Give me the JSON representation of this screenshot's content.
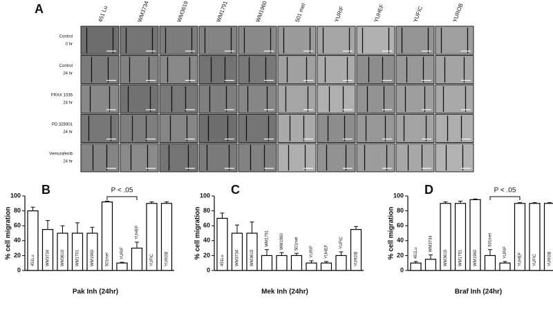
{
  "panel_a": {
    "panel": "A",
    "columns": [
      "451 Lu",
      "WM3734",
      "WM3619",
      "WM1791",
      "WM1960",
      "501 mel",
      "YURIF",
      "YUHEF",
      "YUFIC",
      "YUROB"
    ],
    "rows": [
      [
        "Control",
        "0 hr"
      ],
      [
        "Control",
        "24 hr"
      ],
      [
        "FRAX 1036",
        "24 hr"
      ],
      [
        "PD 325901",
        "24 hr"
      ],
      [
        "Vemurafenib",
        "24 hr"
      ]
    ]
  },
  "chart_data": [
    {
      "type": "bar",
      "panel": "B",
      "xlabel": "Pak Inh (24hr)",
      "ylabel": "% cell migration",
      "annotation": "P < .05",
      "categories": [
        "451Lu",
        "WM3734",
        "WM3619",
        "WM1791",
        "WM1960",
        "501mel",
        "YURIF",
        "YUHEF",
        "YUFIC",
        "YUROB"
      ],
      "values": [
        80,
        55,
        50,
        50,
        50,
        92,
        10,
        30,
        90,
        90
      ],
      "errors": [
        5,
        12,
        10,
        14,
        8,
        1,
        1,
        8,
        2,
        2
      ],
      "color": "#ffffff",
      "ylim": [
        0,
        100
      ],
      "yticks": [
        0,
        20,
        40,
        60,
        80,
        100
      ]
    },
    {
      "type": "bar",
      "panel": "C",
      "xlabel": "Mek Inh (24hr)",
      "ylabel": "% cell migration",
      "categories": [
        "451Lu",
        "WM3734",
        "WM3619",
        "WM1791",
        "WM1960",
        "501mel",
        "YURIF",
        "YUHEF",
        "YUFIC",
        "YUROB"
      ],
      "values": [
        70,
        50,
        50,
        20,
        20,
        20,
        10,
        10,
        20,
        55
      ],
      "errors": [
        7,
        11,
        15,
        8,
        4,
        3,
        3,
        2,
        5,
        4
      ],
      "color": "#ffffff",
      "ylim": [
        0,
        100
      ],
      "yticks": [
        0,
        20,
        40,
        60,
        80,
        100
      ]
    },
    {
      "type": "bar",
      "panel": "D",
      "xlabel": "Braf Inh (24hr)",
      "ylabel": "% cell migration",
      "annotation": "P < .05",
      "categories": [
        "451Lu",
        "WM3734",
        "WM3619",
        "WM1791",
        "WM1960",
        "501mel",
        "YURIF",
        "YUHEF",
        "YUFIC",
        "YUROB"
      ],
      "values": [
        10,
        15,
        90,
        90,
        95,
        20,
        10,
        90,
        90,
        90
      ],
      "errors": [
        2,
        6,
        2,
        3,
        1,
        8,
        2,
        1,
        1,
        1
      ],
      "color": "#ffffff",
      "ylim": [
        0,
        100
      ],
      "yticks": [
        0,
        20,
        40,
        60,
        80,
        100
      ]
    }
  ]
}
